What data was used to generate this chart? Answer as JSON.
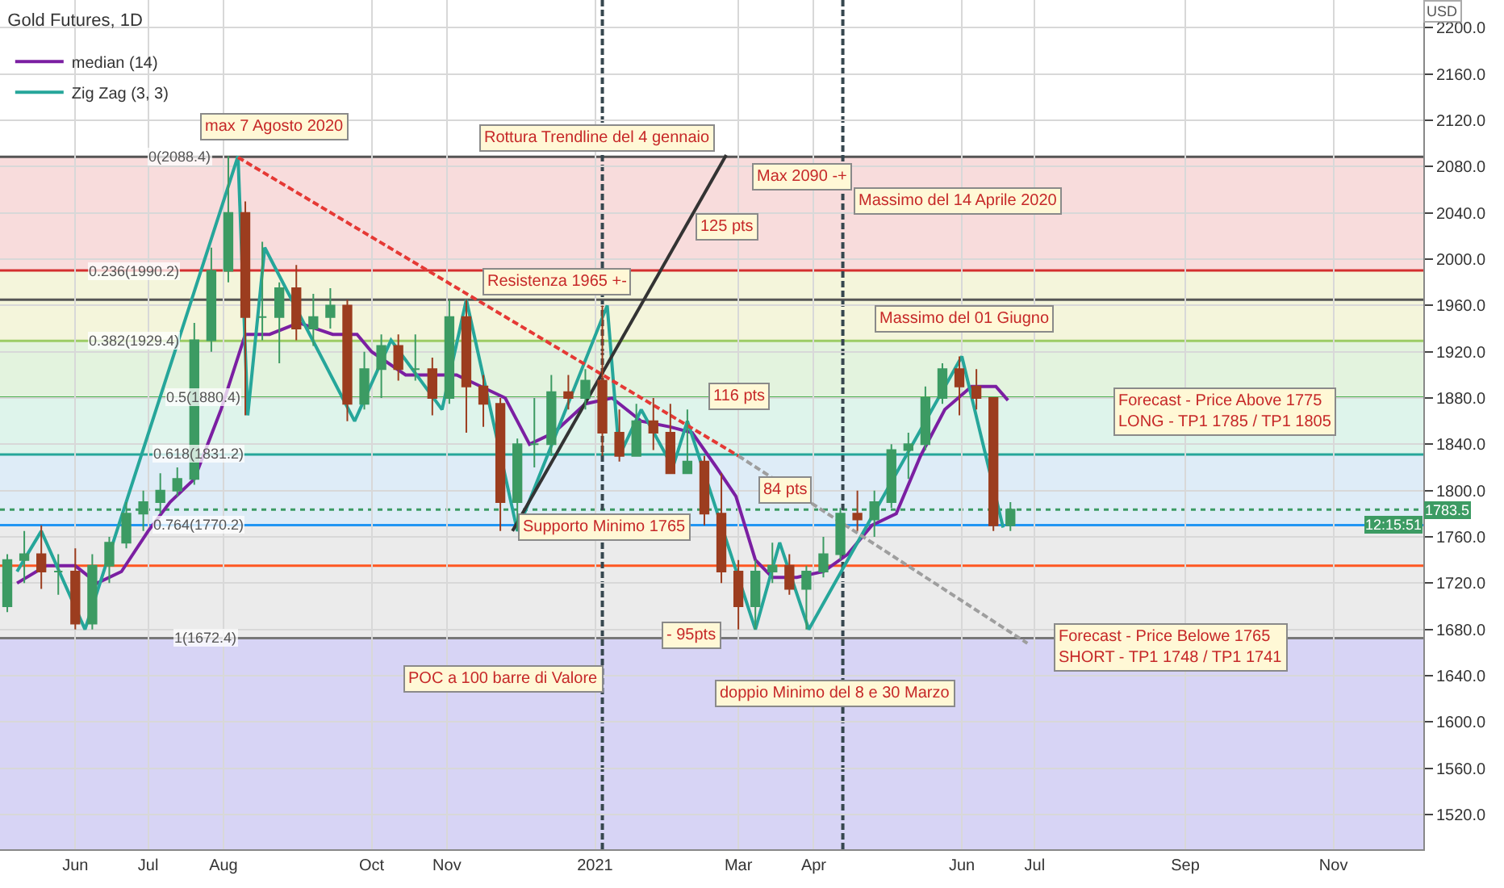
{
  "chart_data": {
    "type": "candlestick",
    "title": "Gold Futures, 1D",
    "x": [
      "2020-05-04",
      "2020-05-11",
      "2020-05-18",
      "2020-05-25",
      "2020-06-01",
      "2020-06-08",
      "2020-06-15",
      "2020-06-22",
      "2020-06-29",
      "2020-07-06",
      "2020-07-13",
      "2020-07-20",
      "2020-07-27",
      "2020-08-03",
      "2020-08-10",
      "2020-08-17",
      "2020-08-24",
      "2020-08-31",
      "2020-09-07",
      "2020-09-14",
      "2020-09-21",
      "2020-09-28",
      "2020-10-05",
      "2020-10-12",
      "2020-10-19",
      "2020-10-26",
      "2020-11-02",
      "2020-11-09",
      "2020-11-16",
      "2020-11-23",
      "2020-11-30",
      "2020-12-07",
      "2020-12-14",
      "2020-12-21",
      "2020-12-28",
      "2021-01-04",
      "2021-01-11",
      "2021-01-18",
      "2021-01-25",
      "2021-02-01",
      "2021-02-08",
      "2021-02-15",
      "2021-02-22",
      "2021-03-01",
      "2021-03-08",
      "2021-03-15",
      "2021-03-22",
      "2021-03-29",
      "2021-04-05",
      "2021-04-12",
      "2021-04-19",
      "2021-04-26",
      "2021-05-03",
      "2021-05-10",
      "2021-05-17",
      "2021-05-24",
      "2021-05-31",
      "2021-06-07",
      "2021-06-14",
      "2021-06-21"
    ],
    "ohlc": [
      [
        1700,
        1745,
        1695,
        1740
      ],
      [
        1740,
        1765,
        1720,
        1745
      ],
      [
        1745,
        1770,
        1715,
        1730
      ],
      [
        1730,
        1745,
        1710,
        1730
      ],
      [
        1730,
        1750,
        1680,
        1685
      ],
      [
        1685,
        1745,
        1680,
        1735
      ],
      [
        1735,
        1760,
        1720,
        1755
      ],
      [
        1755,
        1790,
        1750,
        1780
      ],
      [
        1780,
        1800,
        1765,
        1790
      ],
      [
        1790,
        1815,
        1780,
        1800
      ],
      [
        1800,
        1820,
        1795,
        1810
      ],
      [
        1810,
        1945,
        1805,
        1930
      ],
      [
        1930,
        2010,
        1920,
        1990
      ],
      [
        1990,
        2089,
        1980,
        2040
      ],
      [
        2040,
        2050,
        1865,
        1950
      ],
      [
        1950,
        2015,
        1930,
        1950
      ],
      [
        1950,
        1980,
        1910,
        1975
      ],
      [
        1975,
        1995,
        1930,
        1940
      ],
      [
        1940,
        1970,
        1925,
        1950
      ],
      [
        1950,
        1975,
        1940,
        1960
      ],
      [
        1960,
        1965,
        1860,
        1875
      ],
      [
        1875,
        1920,
        1870,
        1905
      ],
      [
        1905,
        1935,
        1880,
        1925
      ],
      [
        1925,
        1935,
        1895,
        1905
      ],
      [
        1905,
        1935,
        1895,
        1905
      ],
      [
        1905,
        1915,
        1865,
        1880
      ],
      [
        1880,
        1965,
        1875,
        1950
      ],
      [
        1950,
        1965,
        1850,
        1890
      ],
      [
        1890,
        1900,
        1855,
        1875
      ],
      [
        1875,
        1880,
        1765,
        1790
      ],
      [
        1790,
        1845,
        1765,
        1840
      ],
      [
        1840,
        1880,
        1820,
        1840
      ],
      [
        1840,
        1900,
        1830,
        1885
      ],
      [
        1885,
        1900,
        1870,
        1880
      ],
      [
        1880,
        1905,
        1870,
        1895
      ],
      [
        1895,
        1960,
        1830,
        1850
      ],
      [
        1850,
        1870,
        1825,
        1830
      ],
      [
        1830,
        1875,
        1830,
        1860
      ],
      [
        1860,
        1880,
        1835,
        1850
      ],
      [
        1850,
        1875,
        1815,
        1815
      ],
      [
        1815,
        1870,
        1815,
        1825
      ],
      [
        1825,
        1830,
        1770,
        1780
      ],
      [
        1780,
        1815,
        1720,
        1730
      ],
      [
        1730,
        1740,
        1680,
        1700
      ],
      [
        1700,
        1740,
        1680,
        1730
      ],
      [
        1730,
        1755,
        1720,
        1735
      ],
      [
        1735,
        1745,
        1710,
        1715
      ],
      [
        1715,
        1735,
        1680,
        1730
      ],
      [
        1730,
        1760,
        1725,
        1745
      ],
      [
        1745,
        1785,
        1740,
        1780
      ],
      [
        1780,
        1800,
        1765,
        1775
      ],
      [
        1775,
        1800,
        1760,
        1790
      ],
      [
        1790,
        1840,
        1785,
        1835
      ],
      [
        1835,
        1850,
        1810,
        1840
      ],
      [
        1840,
        1890,
        1835,
        1880
      ],
      [
        1880,
        1910,
        1875,
        1905
      ],
      [
        1905,
        1916,
        1865,
        1890
      ],
      [
        1890,
        1905,
        1870,
        1880
      ],
      [
        1880,
        1880,
        1765,
        1770
      ],
      [
        1770,
        1790,
        1765,
        1783.5
      ]
    ],
    "colors": [
      "#3c9b63",
      "#3c9b63",
      "#9c3d1f",
      "#3c9b63",
      "#9c3d1f",
      "#3c9b63",
      "#3c9b63",
      "#3c9b63",
      "#3c9b63",
      "#3c9b63",
      "#3c9b63",
      "#3c9b63",
      "#3c9b63",
      "#3c9b63",
      "#9c3d1f",
      "#3c9b63",
      "#3c9b63",
      "#9c3d1f",
      "#3c9b63",
      "#3c9b63",
      "#9c3d1f",
      "#3c9b63",
      "#3c9b63",
      "#9c3d1f",
      "#3c9b63",
      "#9c3d1f",
      "#3c9b63",
      "#9c3d1f",
      "#9c3d1f",
      "#9c3d1f",
      "#3c9b63",
      "#3c9b63",
      "#3c9b63",
      "#9c3d1f",
      "#3c9b63",
      "#9c3d1f",
      "#9c3d1f",
      "#3c9b63",
      "#9c3d1f",
      "#9c3d1f",
      "#3c9b63",
      "#9c3d1f",
      "#9c3d1f",
      "#9c3d1f",
      "#3c9b63",
      "#3c9b63",
      "#9c3d1f",
      "#3c9b63",
      "#3c9b63",
      "#3c9b63",
      "#9c3d1f",
      "#3c9b63",
      "#3c9b63",
      "#3c9b63",
      "#3c9b63",
      "#3c9b63",
      "#9c3d1f",
      "#9c3d1f",
      "#9c3d1f",
      "#3c9b63"
    ],
    "series": [
      {
        "type": "line",
        "name": "median (14)",
        "color": "#7b1fa2",
        "x": [
          "2020-05-08",
          "2020-05-20",
          "2020-06-01",
          "2020-06-10",
          "2020-06-20",
          "2020-07-01",
          "2020-07-10",
          "2020-07-20",
          "2020-07-31",
          "2020-08-10",
          "2020-08-20",
          "2020-09-01",
          "2020-09-15",
          "2020-09-25",
          "2020-10-01",
          "2020-10-15",
          "2020-10-25",
          "2020-11-05",
          "2020-11-15",
          "2020-11-25",
          "2020-12-05",
          "2020-12-15",
          "2020-12-28",
          "2021-01-08",
          "2021-01-20",
          "2021-02-01",
          "2021-02-10",
          "2021-02-20",
          "2021-02-28",
          "2021-03-08",
          "2021-03-15",
          "2021-03-25",
          "2021-04-05",
          "2021-04-15",
          "2021-04-25",
          "2021-05-05",
          "2021-05-15",
          "2021-05-25",
          "2021-06-05",
          "2021-06-15",
          "2021-06-20"
        ],
        "values": [
          1720,
          1735,
          1735,
          1720,
          1730,
          1765,
          1790,
          1810,
          1870,
          1935,
          1935,
          1945,
          1935,
          1935,
          1920,
          1900,
          1900,
          1900,
          1890,
          1880,
          1840,
          1850,
          1875,
          1880,
          1860,
          1855,
          1850,
          1820,
          1795,
          1740,
          1725,
          1725,
          1730,
          1745,
          1770,
          1780,
          1830,
          1870,
          1890,
          1890,
          1878
        ],
        "line_style": "solid"
      },
      {
        "type": "line",
        "name": "Zig Zag (3, 3)",
        "color": "#26a69a",
        "x": [
          "2020-05-08",
          "2020-05-18",
          "2020-06-05",
          "2020-08-07",
          "2020-08-11",
          "2020-08-18",
          "2020-09-24",
          "2020-10-09",
          "2020-10-30",
          "2020-11-09",
          "2020-11-30",
          "2021-01-06",
          "2021-01-11",
          "2021-01-20",
          "2021-02-02",
          "2021-02-08",
          "2021-03-08",
          "2021-03-18",
          "2021-03-30",
          "2021-06-01",
          "2021-06-18"
        ],
        "values": [
          1730,
          1765,
          1680,
          2089,
          1865,
          2010,
          1860,
          1930,
          1870,
          1965,
          1765,
          1960,
          1830,
          1870,
          1820,
          1860,
          1680,
          1755,
          1680,
          1916,
          1768
        ],
        "line_style": "solid"
      },
      {
        "type": "line",
        "color": "#e53935",
        "x": [
          "2020-08-07",
          "2021-03-01"
        ],
        "values": [
          2088,
          1830
        ],
        "line_style": "dashed"
      },
      {
        "type": "line",
        "color": "#9e9e9e",
        "x": [
          "2021-03-01",
          "2021-06-28"
        ],
        "values": [
          1830,
          1668
        ],
        "line_style": "dashed"
      },
      {
        "type": "line",
        "color": "#333333",
        "x": [
          "2020-11-28",
          "2021-02-24"
        ],
        "values": [
          1765,
          2090
        ],
        "line_style": "solid"
      }
    ],
    "xlim": [
      "2020-05-01",
      "2021-12-08"
    ],
    "xticks": [
      {
        "value": "2020-06-01",
        "label": "Jun"
      },
      {
        "value": "2020-07-01",
        "label": "Jul"
      },
      {
        "value": "2020-08-01",
        "label": "Aug"
      },
      {
        "value": "2020-10-01",
        "label": "Oct"
      },
      {
        "value": "2020-11-01",
        "label": "Nov"
      },
      {
        "value": "2021-01-01",
        "label": "2021"
      },
      {
        "value": "2021-03-01",
        "label": "Mar"
      },
      {
        "value": "2021-04-01",
        "label": "Apr"
      },
      {
        "value": "2021-06-01",
        "label": "Jun"
      },
      {
        "value": "2021-07-01",
        "label": "Jul"
      },
      {
        "value": "2021-09-01",
        "label": "Sep"
      },
      {
        "value": "2021-11-01",
        "label": "Nov"
      }
    ],
    "ylim": [
      1490,
      2224
    ],
    "yticks": [
      {
        "value": 1520,
        "label": "1520.0"
      },
      {
        "value": 1560,
        "label": "1560.0"
      },
      {
        "value": 1600,
        "label": "1600.0"
      },
      {
        "value": 1640,
        "label": "1640.0"
      },
      {
        "value": 1680,
        "label": "1680.0"
      },
      {
        "value": 1720,
        "label": "1720.0"
      },
      {
        "value": 1760,
        "label": "1760.0"
      },
      {
        "value": 1800,
        "label": "1800.0"
      },
      {
        "value": 1840,
        "label": "1840.0"
      },
      {
        "value": 1880,
        "label": "1880.0"
      },
      {
        "value": 1920,
        "label": "1920.0"
      },
      {
        "value": 1960,
        "label": "1960.0"
      },
      {
        "value": 2000,
        "label": "2000.0"
      },
      {
        "value": 2040,
        "label": "2040.0"
      },
      {
        "value": 2080,
        "label": "2080.0"
      },
      {
        "value": 2120,
        "label": "2120.0"
      },
      {
        "value": 2160,
        "label": "2160.0"
      },
      {
        "value": 2200,
        "label": "2200.0"
      }
    ],
    "bands": [
      {
        "axis": "y",
        "from": 1990.2,
        "to": 2088.4,
        "color": "#f6d3d3"
      },
      {
        "axis": "y",
        "from": 1929.4,
        "to": 1990.2,
        "color": "#f1f3d2"
      },
      {
        "axis": "y",
        "from": 1880.4,
        "to": 1929.4,
        "color": "#dcf0d6"
      },
      {
        "axis": "y",
        "from": 1831.2,
        "to": 1880.4,
        "color": "#d6f1e6"
      },
      {
        "axis": "y",
        "from": 1770.2,
        "to": 1831.2,
        "color": "#d6e7f5"
      },
      {
        "axis": "y",
        "from": 1672.4,
        "to": 1770.2,
        "color": "#e6e6e6"
      },
      {
        "axis": "y",
        "from": 1490,
        "to": 1672.4,
        "color": "#cdc9f2"
      }
    ],
    "ref_lines": [
      {
        "axis": "y",
        "value": 2088.4,
        "color": "#555555",
        "line_style": "solid"
      },
      {
        "axis": "y",
        "value": 1990.2,
        "color": "#d32f2f",
        "line_style": "solid"
      },
      {
        "axis": "y",
        "value": 1929.4,
        "color": "#9ccc65",
        "line_style": "solid"
      },
      {
        "axis": "y",
        "value": 1880.4,
        "color": "#4caf50",
        "line_style": "solid"
      },
      {
        "axis": "y",
        "value": 1831.2,
        "color": "#26a69a",
        "line_style": "solid"
      },
      {
        "axis": "y",
        "value": 1770.2,
        "color": "#2196f3",
        "line_style": "solid"
      },
      {
        "axis": "y",
        "value": 1672.4,
        "color": "#777777",
        "line_style": "solid"
      },
      {
        "axis": "y",
        "value": 1965,
        "color": "#555555",
        "line_style": "solid"
      },
      {
        "axis": "y",
        "value": 1735,
        "color": "#ff5722",
        "line_style": "solid"
      },
      {
        "axis": "y",
        "value": 1783.5,
        "label": "1783.5",
        "color": "#3c9b63",
        "line_style": "dotted"
      },
      {
        "axis": "x",
        "value": "2021-01-04",
        "color": "#37474f",
        "line_style": "dashed"
      },
      {
        "axis": "x",
        "value": "2021-04-13",
        "color": "#37474f",
        "line_style": "dashed"
      }
    ],
    "annotations": [
      {
        "text": "0(2088.4)",
        "x": "2020-07-14",
        "y": 2088.4
      },
      {
        "text": "0.236(1990.2)",
        "x": "2020-06-25",
        "y": 1990.2
      },
      {
        "text": "0.382(1929.4)",
        "x": "2020-06-25",
        "y": 1929.4
      },
      {
        "text": "0.5(1880.4)",
        "x": "2020-07-24",
        "y": 1880.4
      },
      {
        "text": "0.618(1831.2)",
        "x": "2020-07-22",
        "y": 1831.2
      },
      {
        "text": "0.764(1770.2)",
        "x": "2020-07-22",
        "y": 1770.2
      },
      {
        "text": "1(1672.4)",
        "x": "2020-07-25",
        "y": 1672.4
      },
      "max 7 Agosto 2020",
      {
        "text": "Rottura Trendline del 4 gennaio",
        "x": "2021-01-02",
        "y": 2104
      },
      "Max 2090 -+",
      "Massimo del 14 Aprile 2020",
      {
        "text": "125 pts",
        "x": "2021-02-24",
        "y": 2028
      },
      "Resistenza 1965 +-",
      "Massimo del 01 Giugno",
      {
        "text": "116 pts",
        "x": "2021-03-01",
        "y": 1882
      },
      {
        "text": "84 pts",
        "x": "2021-03-20",
        "y": 1800
      },
      {
        "text": "Supporto Minimo 1765",
        "x": "2021-01-05",
        "y": 1768
      },
      {
        "text": "- 95pts",
        "x": "2021-02-10",
        "y": 1675
      },
      "POC a 100 barre di Valore",
      "doppio Minimo del 8 e 30 Marzo",
      "Forecast - Price Above 1775\nLONG - TP1 1785 / TP1 1805",
      "Forecast - Price Belowe 1765\nSHORT - TP1 1748 / TP1 1741",
      "USD",
      "12:15:51"
    ],
    "grid": true,
    "legend": "top left",
    "marker": "none"
  }
}
